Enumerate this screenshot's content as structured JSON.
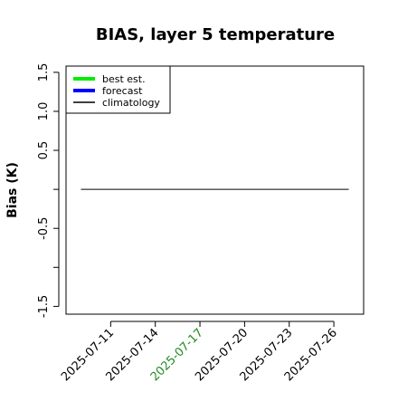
{
  "chart_data": {
    "type": "line",
    "title": "BIAS, layer 5 temperature",
    "y_label": "Bias (K)",
    "x": [
      "2025-07-09",
      "2025-07-27"
    ],
    "series": [
      {
        "name": "best est.",
        "color": "#00ee00",
        "values": [
          null,
          null
        ]
      },
      {
        "name": "forecast",
        "color": "#0000ff",
        "values": [
          null,
          null
        ]
      },
      {
        "name": "climatology",
        "color": "#000000",
        "values": [
          0,
          0
        ]
      }
    ],
    "xlim": [
      "2025-07-08",
      "2025-07-28"
    ],
    "xticks": [
      "2025-07-11",
      "2025-07-14",
      "2025-07-17",
      "2025-07-20",
      "2025-07-23",
      "2025-07-26"
    ],
    "highlight_xtick": "2025-07-17",
    "highlight_color": "#228b22",
    "ylim": [
      -1.6,
      1.58
    ],
    "yticks": [
      -1.5,
      {
        "value": -1,
        "label": null
      },
      -0.5,
      {
        "value": 0,
        "label": null
      },
      0.5,
      {
        "value": 1,
        "label": "1.0"
      },
      1.5
    ],
    "legend": "top-left"
  }
}
